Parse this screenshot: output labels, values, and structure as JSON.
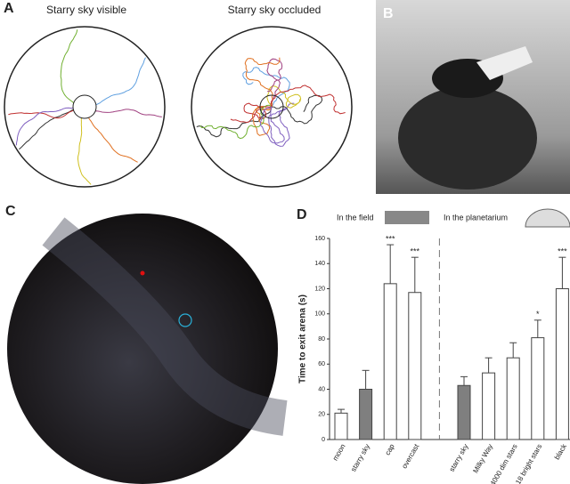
{
  "panels": {
    "a": "A",
    "b": "B",
    "c": "C",
    "d": "D"
  },
  "panel_a": {
    "titles": [
      "Starry sky visible",
      "Starry sky occluded"
    ]
  },
  "chart_data": {
    "type": "bar",
    "categories": [
      "moon",
      "starry sky",
      "cap",
      "overcast",
      "starry sky",
      "Milky Way",
      "4000 dim stars",
      "18 bright stars",
      "black"
    ],
    "values": [
      21,
      40,
      124,
      117,
      43,
      53,
      65,
      81,
      120
    ],
    "errors": [
      3,
      15,
      31,
      28,
      7,
      12,
      12,
      14,
      25
    ],
    "colors": [
      "#ffffff",
      "#7f7f7f",
      "#ffffff",
      "#ffffff",
      "#7f7f7f",
      "#ffffff",
      "#ffffff",
      "#ffffff",
      "#ffffff"
    ],
    "significance": [
      null,
      null,
      "***",
      "***",
      null,
      null,
      null,
      "*",
      "***"
    ],
    "groups": [
      "In the field",
      "In the planetarium"
    ],
    "y_label": "Time to exit arena (s)",
    "ylim": [
      0,
      160
    ],
    "yticks": [
      0,
      20,
      40,
      60,
      80,
      100,
      120,
      140,
      160
    ]
  }
}
